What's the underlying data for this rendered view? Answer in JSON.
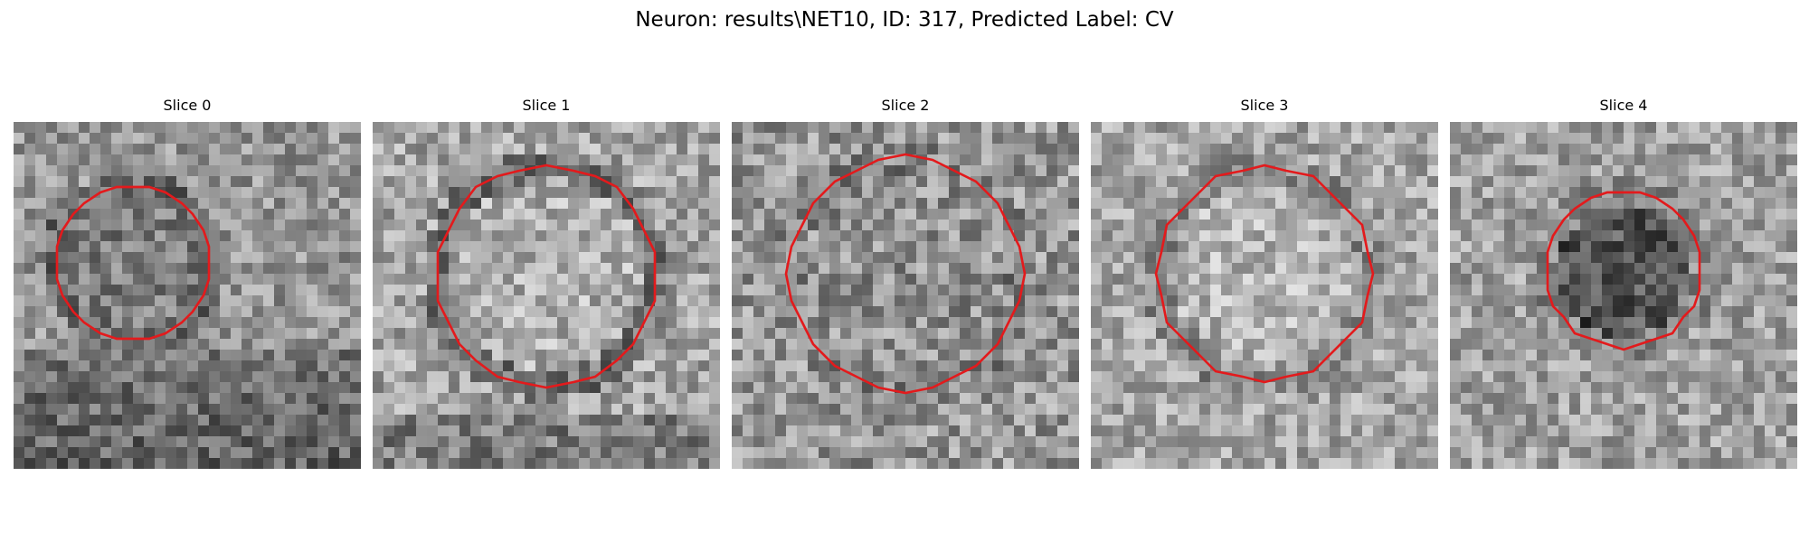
{
  "figure": {
    "title": "Neuron: results\\NET10, ID: 317, Predicted Label: CV"
  },
  "panels": [
    {
      "title": "Slice 0",
      "seed": 11,
      "tone": 150,
      "spread": 95,
      "inside_shift": -25,
      "band_shift": -45
    },
    {
      "title": "Slice 1",
      "seed": 23,
      "tone": 165,
      "spread": 100,
      "inside_shift": 10,
      "band_shift": -50
    },
    {
      "title": "Slice 2",
      "seed": 37,
      "tone": 150,
      "spread": 110,
      "inside_shift": -5,
      "band_shift": -15
    },
    {
      "title": "Slice 3",
      "seed": 41,
      "tone": 165,
      "spread": 95,
      "inside_shift": 15,
      "band_shift": -25
    },
    {
      "title": "Slice 4",
      "seed": 59,
      "tone": 160,
      "spread": 95,
      "inside_shift": -75,
      "band_shift": -20
    }
  ],
  "colors": {
    "contour": "#e31a1c"
  }
}
